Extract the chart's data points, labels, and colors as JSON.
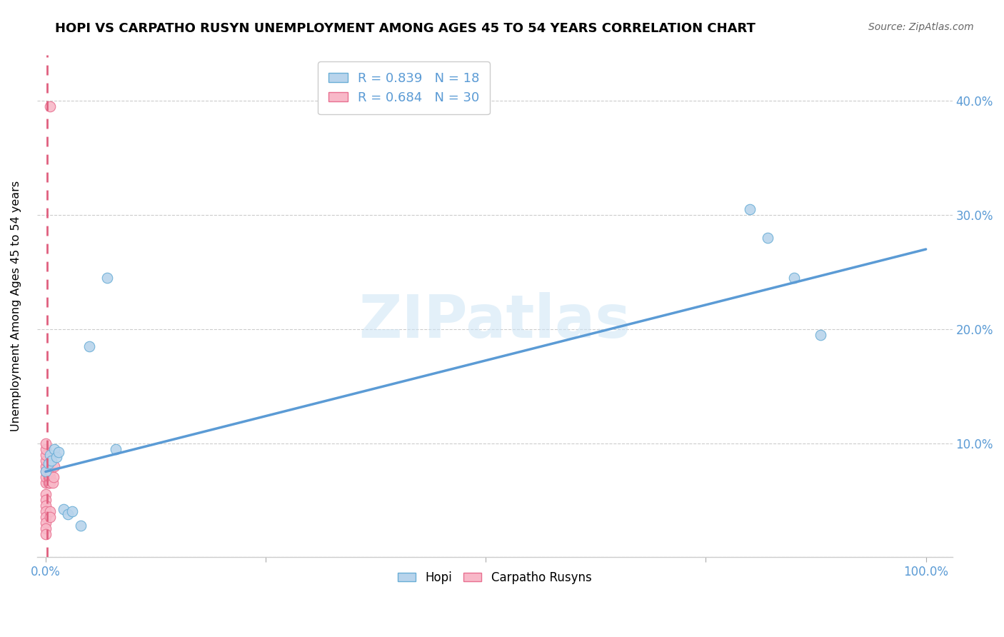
{
  "title": "HOPI VS CARPATHO RUSYN UNEMPLOYMENT AMONG AGES 45 TO 54 YEARS CORRELATION CHART",
  "source": "Source: ZipAtlas.com",
  "ylabel": "Unemployment Among Ages 45 to 54 years",
  "hopi_R": 0.839,
  "hopi_N": 18,
  "carpatho_R": 0.684,
  "carpatho_N": 30,
  "hopi_color": "#b8d4ec",
  "carpatho_color": "#f8b8c8",
  "hopi_edge_color": "#6aaed6",
  "carpatho_edge_color": "#e87090",
  "hopi_line_color": "#5b9bd5",
  "carpatho_line_color": "#e06080",
  "tick_label_color": "#5b9bd5",
  "watermark": "ZIPatlas",
  "hopi_points": [
    [
      0.0,
      0.075
    ],
    [
      0.003,
      0.082
    ],
    [
      0.005,
      0.09
    ],
    [
      0.007,
      0.085
    ],
    [
      0.01,
      0.095
    ],
    [
      0.012,
      0.088
    ],
    [
      0.015,
      0.092
    ],
    [
      0.02,
      0.042
    ],
    [
      0.025,
      0.038
    ],
    [
      0.03,
      0.04
    ],
    [
      0.04,
      0.028
    ],
    [
      0.05,
      0.185
    ],
    [
      0.07,
      0.245
    ],
    [
      0.08,
      0.095
    ],
    [
      0.8,
      0.305
    ],
    [
      0.82,
      0.28
    ],
    [
      0.85,
      0.245
    ],
    [
      0.88,
      0.195
    ]
  ],
  "carpatho_points": [
    [
      0.0,
      0.065
    ],
    [
      0.0,
      0.07
    ],
    [
      0.0,
      0.075
    ],
    [
      0.0,
      0.08
    ],
    [
      0.0,
      0.085
    ],
    [
      0.0,
      0.055
    ],
    [
      0.0,
      0.05
    ],
    [
      0.0,
      0.045
    ],
    [
      0.0,
      0.04
    ],
    [
      0.0,
      0.035
    ],
    [
      0.0,
      0.03
    ],
    [
      0.0,
      0.025
    ],
    [
      0.0,
      0.02
    ],
    [
      0.003,
      0.065
    ],
    [
      0.003,
      0.07
    ],
    [
      0.003,
      0.075
    ],
    [
      0.004,
      0.065
    ],
    [
      0.004,
      0.07
    ],
    [
      0.005,
      0.065
    ],
    [
      0.005,
      0.07
    ],
    [
      0.005,
      0.075
    ],
    [
      0.005,
      0.04
    ],
    [
      0.005,
      0.035
    ],
    [
      0.005,
      0.395
    ],
    [
      0.008,
      0.065
    ],
    [
      0.009,
      0.07
    ],
    [
      0.01,
      0.08
    ],
    [
      0.0,
      0.09
    ],
    [
      0.0,
      0.095
    ],
    [
      0.0,
      0.1
    ]
  ],
  "hopi_trend_x0": 0.0,
  "hopi_trend_y0": 0.075,
  "hopi_trend_x1": 1.0,
  "hopi_trend_y1": 0.27,
  "carpatho_trend_x0": 0.002,
  "carpatho_trend_y0": 0.0,
  "carpatho_trend_x1": 0.002,
  "carpatho_trend_y1": 0.44,
  "xlim": [
    -0.01,
    1.03
  ],
  "ylim": [
    0.0,
    0.44
  ],
  "ytick_positions": [
    0.0,
    0.1,
    0.2,
    0.3,
    0.4
  ],
  "ytick_labels": [
    "",
    "10.0%",
    "20.0%",
    "30.0%",
    "40.0%"
  ],
  "xtick_minor": [
    0.0,
    0.25,
    0.5,
    0.75,
    1.0
  ],
  "xtick_labels_sparse": {
    "0.0": "0.0%",
    "1.0": "100.0%"
  }
}
